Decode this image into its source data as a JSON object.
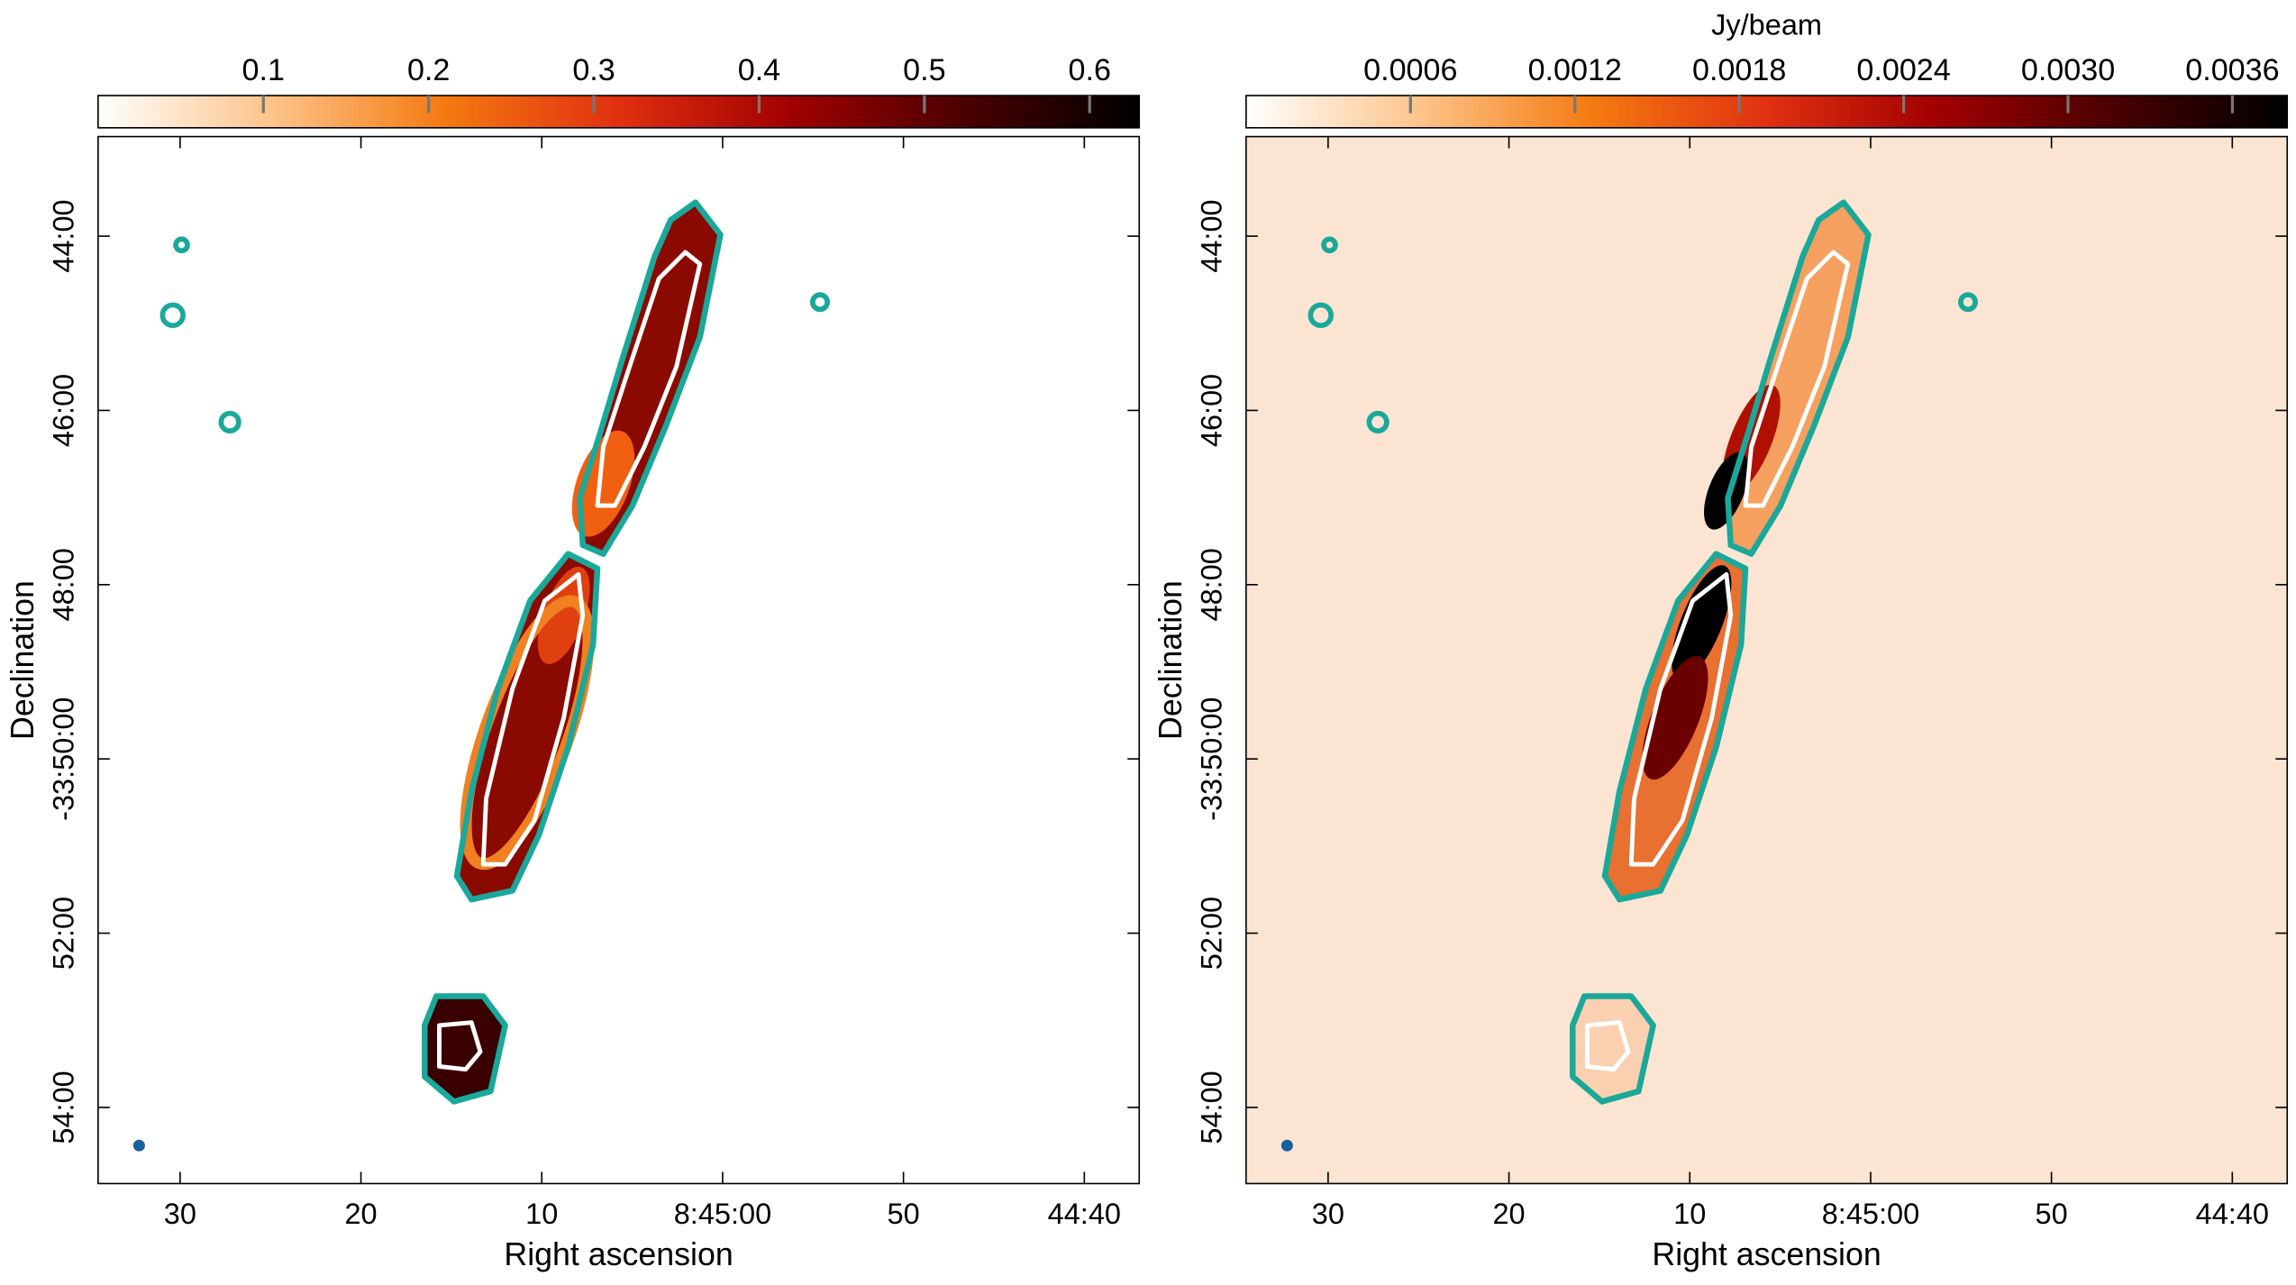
{
  "chart_data": [
    {
      "type": "image",
      "xlabel": "Right ascension",
      "ylabel": "Declination",
      "xticks": [
        "30",
        "20",
        "10",
        "8:45:00",
        "50",
        "44:40"
      ],
      "yticks": [
        "44:00",
        "46:00",
        "48:00",
        "-33:50:00",
        "52:00",
        "54:00"
      ],
      "clim": [
        0,
        0.63
      ],
      "cticks": [
        0.1,
        0.2,
        0.3,
        0.4,
        0.5,
        0.6
      ],
      "cmap": [
        "#ffffff",
        "#fdc48a",
        "#f47a10",
        "#e03010",
        "#a00000",
        "#4a0000",
        "#000000"
      ],
      "background": "#ffffff"
    },
    {
      "type": "image",
      "xlabel": "Right ascension",
      "ylabel": "Declination",
      "colorbar_label": "Jy/beam",
      "xticks": [
        "30",
        "20",
        "10",
        "8:45:00",
        "50",
        "44:40"
      ],
      "yticks": [
        "44:00",
        "46:00",
        "48:00",
        "-33:50:00",
        "52:00",
        "54:00"
      ],
      "clim": [
        0,
        0.0038
      ],
      "cticks": [
        0.0006,
        0.0012,
        0.0018,
        0.0024,
        {
          "value": 0.003,
          "label": "0.0030"
        },
        0.0036
      ],
      "cmap": [
        "#ffffff",
        "#fdc48a",
        "#f47a10",
        "#e03010",
        "#a00000",
        "#4a0000",
        "#000000"
      ],
      "background": "#fbe5d2"
    }
  ]
}
